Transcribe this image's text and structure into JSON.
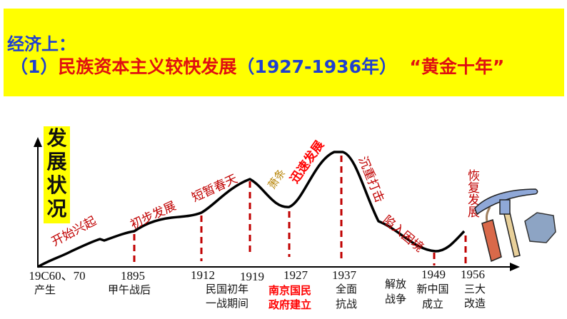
{
  "banner": {
    "line1": "经济上：",
    "line2_prefix": "（1）",
    "line2_main": "民族资本主义较快发展",
    "line2_period": "（1927-1936年）",
    "line2_nickname": "“黄金十年”"
  },
  "diagram": {
    "y_axis_label": "发展状况",
    "stages": [
      "开始兴起",
      "初步发展",
      "短暂春天",
      "萧条",
      "迅速发展",
      "沉重打击",
      "陷入困境",
      "恢复发展"
    ],
    "years": [
      "19C60、70",
      "1895",
      "1912",
      "1919",
      "1927",
      "1937",
      "1949",
      "1956"
    ],
    "events": {
      "e0": "产生",
      "e1": "甲午战后",
      "e2a": "民国初年",
      "e2b": "一战期间",
      "e4a": "南京国民",
      "e4b": "政府建立",
      "e5a": "全面",
      "e5b": "抗战",
      "ewa": "解放",
      "ewb": "战争",
      "e6a": "新中国",
      "e6b": "成立",
      "e7a": "三大",
      "e7b": "改造"
    },
    "colors": {
      "curve": "#000000",
      "dash": "#c00000",
      "stage": "#c00000",
      "xiaotiao": "#b8860b",
      "highlight": "#ff0000"
    },
    "illustration_icons": [
      "dynamite-icon",
      "pickaxe-icon",
      "rock-icon"
    ]
  }
}
